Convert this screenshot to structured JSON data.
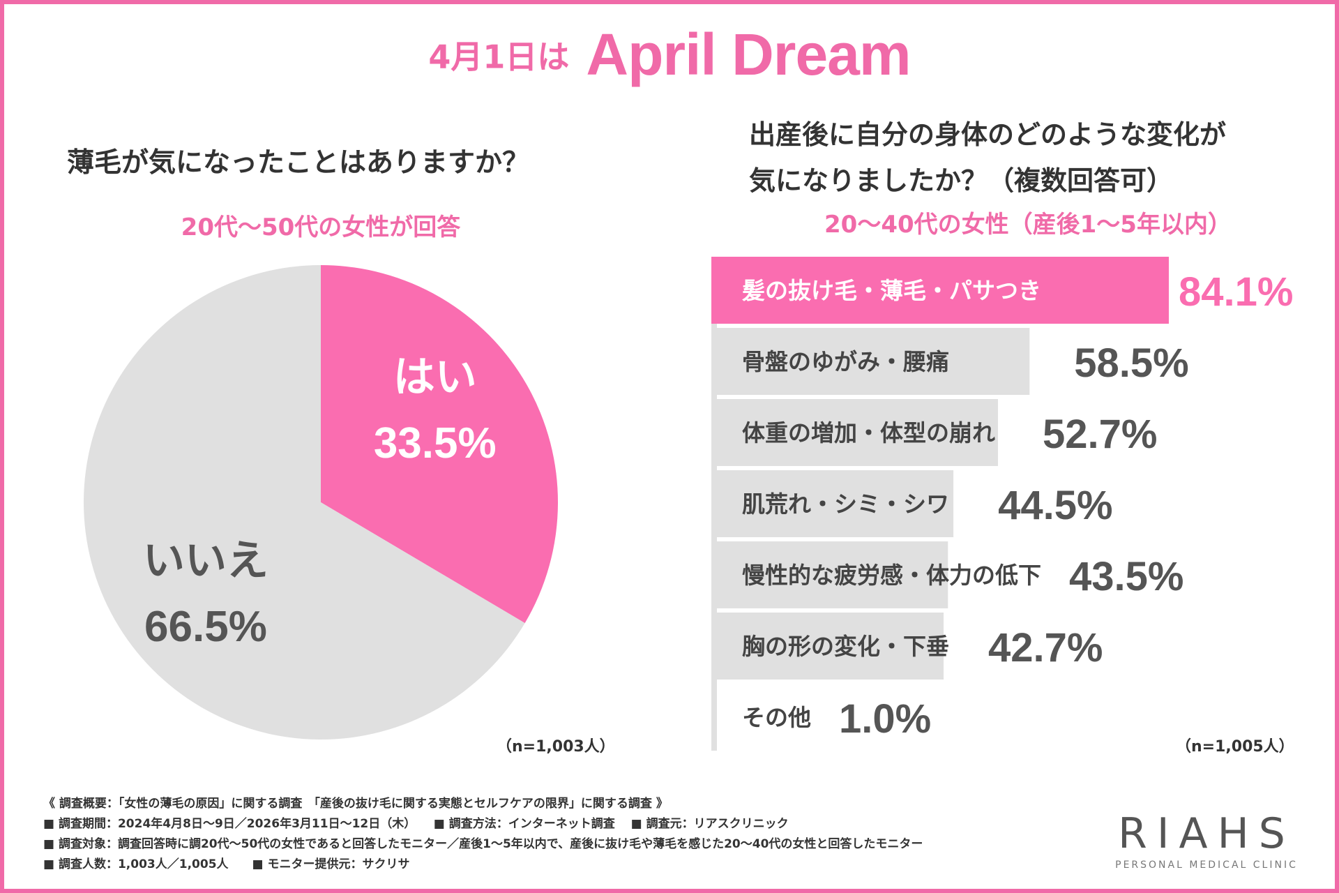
{
  "header": {
    "prefix": "4月1日は",
    "title": "April Dream"
  },
  "left": {
    "question": "薄毛が気になったことはありますか？",
    "subtitle": "20代〜50代の女性が回答",
    "sample": "（n=1,003人）"
  },
  "right": {
    "question_line1": "出産後に自分の身体のどのような変化が",
    "question_line2": "気になりましたか？（複数回答可）",
    "subtitle": "20〜40代の女性（産後1〜5年以内）",
    "sample": "（n=1,005人）"
  },
  "chart_data": [
    {
      "type": "pie",
      "slices": [
        {
          "label": "はい",
          "value": 33.5,
          "value_label": "33.5%",
          "color": "#fa6db0"
        },
        {
          "label": "いいえ",
          "value": 66.5,
          "value_label": "66.5%",
          "color": "#e0e0e0"
        }
      ]
    },
    {
      "type": "bar",
      "orientation": "horizontal",
      "categories": [
        "髪の抜け毛・薄毛・パサつき",
        "骨盤のゆがみ・腰痛",
        "体重の増加・体型の崩れ",
        "肌荒れ・シミ・シワ",
        "慢性的な疲労感・体力の低下",
        "胸の形の変化・下垂",
        "その他"
      ],
      "values": [
        84.1,
        58.5,
        52.7,
        44.5,
        43.5,
        42.7,
        1.0
      ],
      "value_labels": [
        "84.1%",
        "58.5%",
        "52.7%",
        "44.5%",
        "43.5%",
        "42.7%",
        "1.0%"
      ],
      "highlight_color": "#fa6db0",
      "bar_color": "#e0e0e0"
    }
  ],
  "footer": {
    "line1": "《 調査概要：「女性の薄毛の原因」に関する調査　「産後の抜け毛に関する実態とセルフケアの限界」に関する調査 》",
    "line2": "■ 調査期間：2024年4月8日〜9日／2026年3月11日〜12日（木）　　■ 調査方法：インターネット調査　 ■ 調査元：リアスクリニック",
    "line3": "■ 調査対象：調査回答時に調20代〜50代の女性であると回答したモニター／産後1〜5年以内で、産後に抜け毛や薄毛を感じた20〜40代の女性と回答したモニター",
    "line4": "■ 調査人数：1,003人／1,005人　　■ モニター提供元：サクリサ"
  },
  "logo": {
    "word": "RIAHS",
    "tagline": "PERSONAL MEDICAL CLINIC"
  }
}
